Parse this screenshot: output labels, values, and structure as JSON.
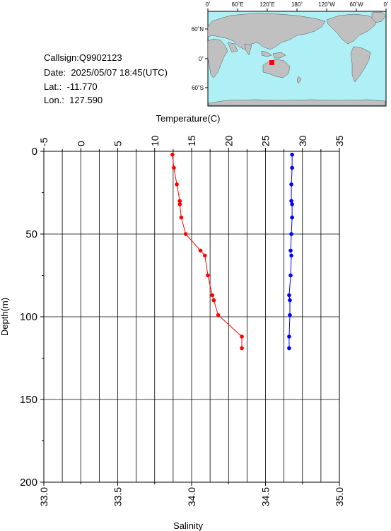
{
  "station": {
    "callsign_label": "Callsign:",
    "callsign": "Q9902123",
    "date_label": "Date:",
    "date": "2025/05/07 18:45(UTC)",
    "lat_label": "Lat.:",
    "lat": "-11.770",
    "lon_label": "Lon.:",
    "lon": "127.590"
  },
  "map": {
    "top_ticks": [
      "0˚",
      "60˚E",
      "120˚E",
      "180˚",
      "120˚W",
      "60˚W",
      "0˚"
    ],
    "left_ticks": [
      "60˚N",
      "0˚",
      "60˚S"
    ],
    "ocean_color": "#aef0f5",
    "land_color": "#c0c0c0",
    "marker_color": "#ff0000"
  },
  "chart_data": {
    "type": "line",
    "title": "",
    "top_axis": {
      "label": "Temperature(C)",
      "ticks": [
        "-5",
        "0",
        "5",
        "10",
        "15",
        "20",
        "25",
        "30",
        "35"
      ],
      "range": [
        -5,
        35
      ]
    },
    "bottom_axis": {
      "label": "Salinity",
      "ticks": [
        "33.0",
        "33.5",
        "34.0",
        "34.5",
        "35.0"
      ],
      "range": [
        33.0,
        35.0
      ]
    },
    "left_axis": {
      "label": "Depth(m)",
      "ticks": [
        "0",
        "50",
        "100",
        "150",
        "200"
      ],
      "range": [
        0,
        200
      ],
      "inverted": true
    },
    "grid": true,
    "series": [
      {
        "color": "#ff0000",
        "axis": "bottom",
        "points": [
          [
            33.87,
            2
          ],
          [
            33.88,
            10
          ],
          [
            33.9,
            20
          ],
          [
            33.92,
            30
          ],
          [
            33.92,
            32
          ],
          [
            33.93,
            40
          ],
          [
            33.96,
            50
          ],
          [
            34.06,
            60
          ],
          [
            34.09,
            63
          ],
          [
            34.11,
            75
          ],
          [
            34.14,
            87
          ],
          [
            34.15,
            90
          ],
          [
            34.18,
            99
          ],
          [
            34.34,
            112
          ],
          [
            34.34,
            119
          ]
        ]
      },
      {
        "color": "#0000ff",
        "axis": "top",
        "points": [
          [
            28.6,
            2
          ],
          [
            28.6,
            10
          ],
          [
            28.5,
            20
          ],
          [
            28.5,
            30
          ],
          [
            28.6,
            32
          ],
          [
            28.6,
            40
          ],
          [
            28.5,
            50
          ],
          [
            28.4,
            60
          ],
          [
            28.5,
            63
          ],
          [
            28.4,
            75
          ],
          [
            28.2,
            87
          ],
          [
            28.3,
            90
          ],
          [
            28.3,
            99
          ],
          [
            28.2,
            112
          ],
          [
            28.2,
            119
          ]
        ]
      }
    ]
  }
}
